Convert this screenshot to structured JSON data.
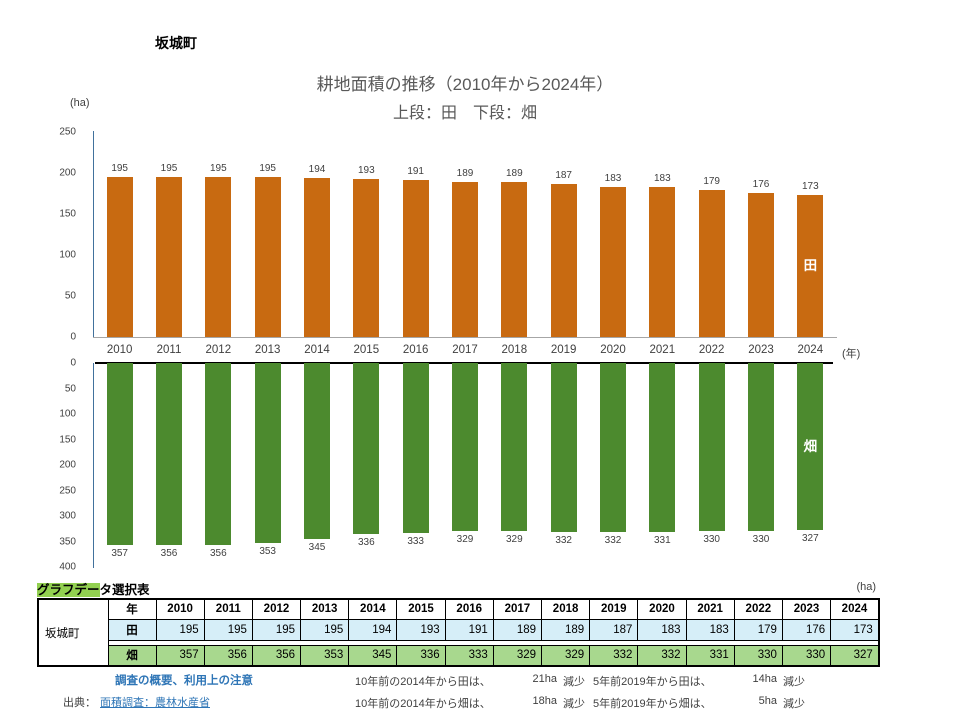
{
  "page": {
    "municipality": "坂城町",
    "upper_unit": "(ha)",
    "year_unit": "(年)"
  },
  "colors": {
    "paddy_bar": "#C86A11",
    "field_bar": "#4C8A2E",
    "axis_line": "#41719C",
    "baseline_gray": "#A6A6A6",
    "title_gray": "#595959",
    "link_blue": "#2E75B6",
    "highlight_green": "#92D050",
    "table_paddy_bg": "#D6EEF8",
    "table_field_bg": "#A8D88E"
  },
  "chart_data": {
    "type": "bar",
    "title": "耕地面積の推移（2010年から2024年）",
    "subtitle": "上段：田　下段：畑",
    "unit": "(ha)",
    "x_unit": "(年)",
    "grid": false,
    "categories": [
      "2010",
      "2011",
      "2012",
      "2013",
      "2014",
      "2015",
      "2016",
      "2017",
      "2018",
      "2019",
      "2020",
      "2021",
      "2022",
      "2023",
      "2024"
    ],
    "series": [
      {
        "name": "田",
        "orientation": "up",
        "color": "#C86A11",
        "axis_max": 250,
        "axis_ticks": [
          250,
          200,
          150,
          100,
          50,
          0
        ],
        "values": [
          195,
          195,
          195,
          195,
          194,
          193,
          191,
          189,
          189,
          187,
          183,
          183,
          179,
          176,
          173
        ]
      },
      {
        "name": "畑",
        "orientation": "down",
        "color": "#4C8A2E",
        "axis_max": 400,
        "axis_ticks": [
          0,
          50,
          100,
          150,
          200,
          250,
          300,
          350,
          400
        ],
        "values": [
          357,
          356,
          356,
          353,
          345,
          336,
          333,
          329,
          329,
          332,
          332,
          331,
          330,
          330,
          327
        ]
      }
    ]
  },
  "table": {
    "title_highlight": "グラフデー",
    "title_rest": "タ選択表",
    "unit": "(ha)",
    "row_header": "坂城町",
    "col_header": "年",
    "years": [
      "2010",
      "2011",
      "2012",
      "2013",
      "2014",
      "2015",
      "2016",
      "2017",
      "2018",
      "2019",
      "2020",
      "2021",
      "2022",
      "2023",
      "2024"
    ],
    "rows": [
      {
        "label": "田",
        "bg": "#D6EEF8",
        "values": [
          195,
          195,
          195,
          195,
          194,
          193,
          191,
          189,
          189,
          187,
          183,
          183,
          179,
          176,
          173
        ]
      },
      {
        "label": "畑",
        "bg": "#A8D88E",
        "values": [
          357,
          356,
          356,
          353,
          345,
          336,
          333,
          329,
          329,
          332,
          332,
          331,
          330,
          330,
          327
        ]
      }
    ]
  },
  "footer": {
    "survey_link": "調査の概要、利用上の注意",
    "source_label": "出典：",
    "source_link": "面積調査：農林水産省",
    "notes": [
      {
        "text": "10年前の2014年から田は、",
        "value": "21ha",
        "suffix": "減少"
      },
      {
        "text": "10年前の2014年から畑は、",
        "value": "18ha",
        "suffix": "減少"
      },
      {
        "text": "5年前2019年から田は、",
        "value": "14ha",
        "suffix": "減少"
      },
      {
        "text": "5年前2019年から畑は、",
        "value": "5ha",
        "suffix": "減少"
      }
    ]
  }
}
